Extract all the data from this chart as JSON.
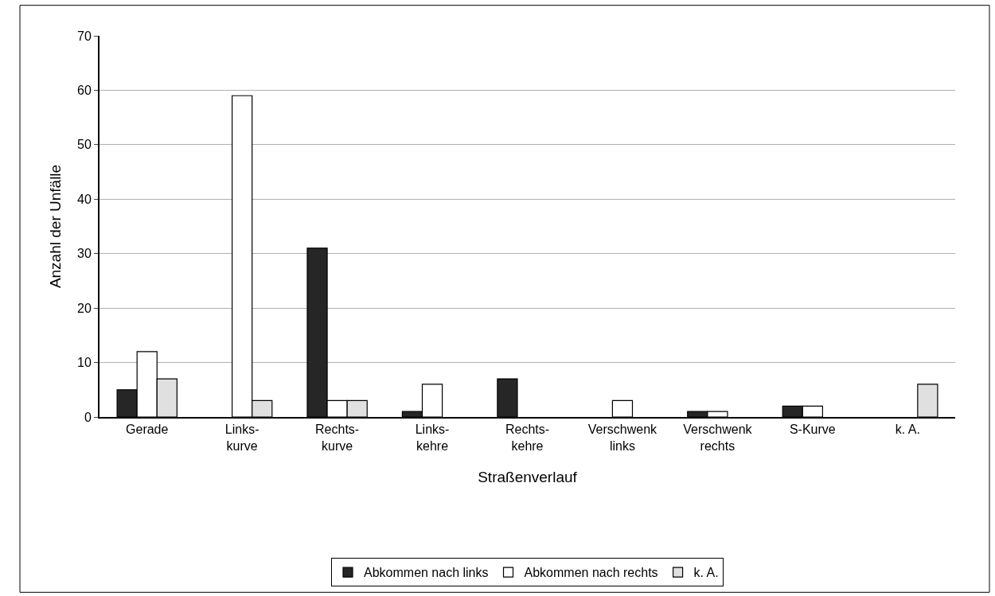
{
  "chart_data": {
    "type": "bar",
    "xlabel": "Straßenverlauf",
    "ylabel": "Anzahl der Unfälle",
    "categories": [
      "Gerade",
      "Links-\nkurve",
      "Rechts-\nkurve",
      "Links-\nkehre",
      "Rechts-\nkehre",
      "Verschwenk\nlinks",
      "Verschwenk\nrechts",
      "S-Kurve",
      "k. A."
    ],
    "series": [
      {
        "name": "Abkommen nach links",
        "color": "#262626",
        "values": [
          5,
          0,
          31,
          1,
          7,
          0,
          1,
          2,
          0
        ]
      },
      {
        "name": "Abkommen nach rechts",
        "color": "#ffffff",
        "values": [
          12,
          59,
          3,
          6,
          0,
          3,
          1,
          2,
          0
        ]
      },
      {
        "name": "k. A.",
        "color": "#e0e0e0",
        "values": [
          7,
          3,
          3,
          0,
          0,
          0,
          0,
          0,
          6
        ]
      }
    ],
    "ylim": [
      0,
      70
    ],
    "yticks": [
      0,
      10,
      20,
      30,
      40,
      50,
      60,
      70
    ],
    "grid": "y",
    "legend": "bottom"
  }
}
